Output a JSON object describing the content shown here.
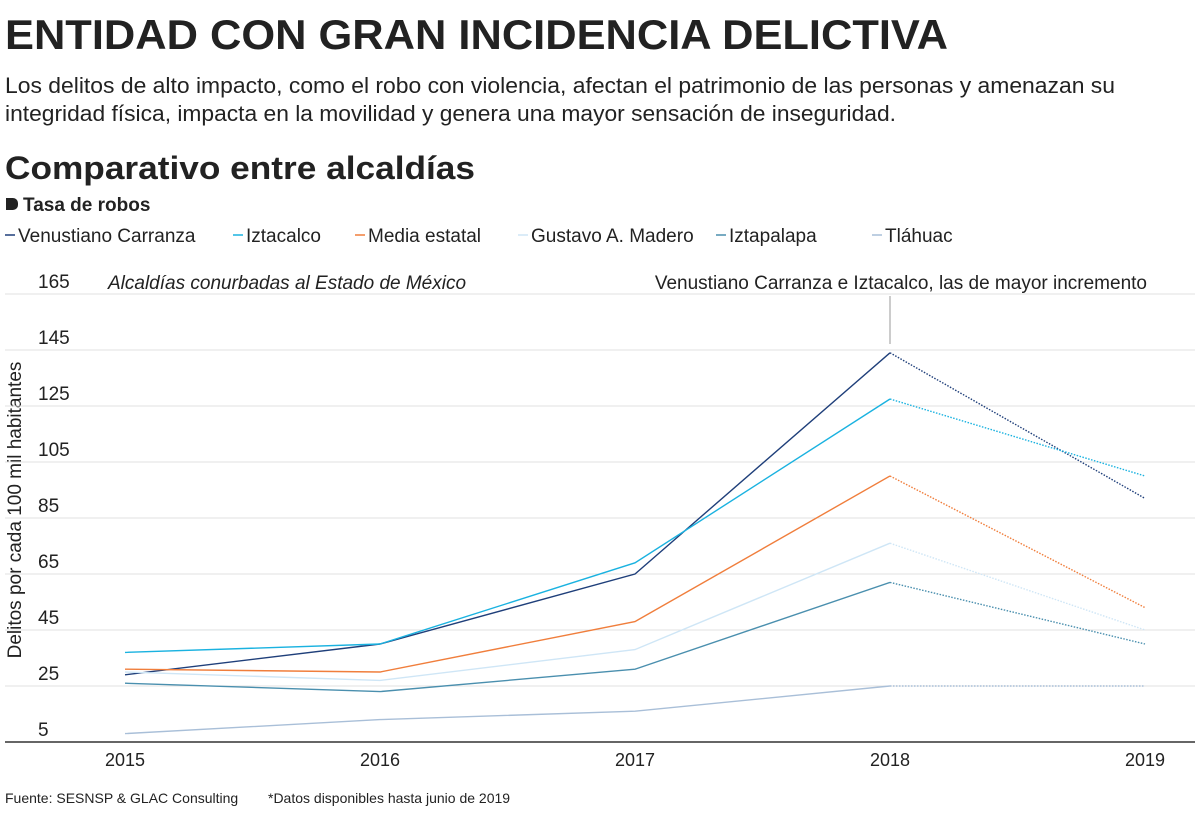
{
  "chart_data": {
    "type": "line",
    "title": "ENTIDAD CON GRAN INCIDENCIA DELICTIVA",
    "subtitle_lines": [
      "Los delitos de alto impacto, como el robo con violencia, afectan el patrimonio de las personas y amenazan su",
      "integridad física, impacta en la movilidad y genera una mayor sensación de inseguridad."
    ],
    "section_title": "Comparativo entre alcaldías",
    "legend_title": "Tasa de robos",
    "y_label": "Delitos por cada 100 mil habitantes",
    "annotations": [
      "Alcaldías conurbadas al Estado de México",
      "Venustiano Carranza e Iztacalco, las de mayor incremento"
    ],
    "source": "Fuente: SESNSP & GLAC Consulting",
    "note": "*Datos disponibles hasta junio de 2019",
    "categories": [
      "2015",
      "2016",
      "2017",
      "2018",
      "2019"
    ],
    "last_segment_dotted": true,
    "grid": true,
    "ylim": [
      5,
      165
    ],
    "yticks": [
      5,
      25,
      45,
      65,
      85,
      105,
      125,
      145,
      165
    ],
    "series": [
      {
        "name": "Venustiano Carranza",
        "color": "#1f3f7a",
        "values": [
          29,
          40,
          65,
          144,
          92
        ]
      },
      {
        "name": "Iztacalco",
        "color": "#1ab2e0",
        "values": [
          37,
          40,
          69,
          127.5,
          100
        ]
      },
      {
        "name": "Media estatal",
        "color": "#f07e3c",
        "values": [
          31,
          30,
          48,
          100,
          53
        ]
      },
      {
        "name": "Gustavo A. Madero",
        "color": "#cfe6f6",
        "values": [
          30,
          27,
          38,
          76,
          45
        ]
      },
      {
        "name": "Iztapalapa",
        "color": "#4a8fae",
        "values": [
          26,
          23,
          31,
          62,
          40
        ]
      },
      {
        "name": "Tláhuac",
        "color": "#a9bfd8",
        "values": [
          8,
          13,
          16,
          25,
          25
        ]
      }
    ]
  }
}
